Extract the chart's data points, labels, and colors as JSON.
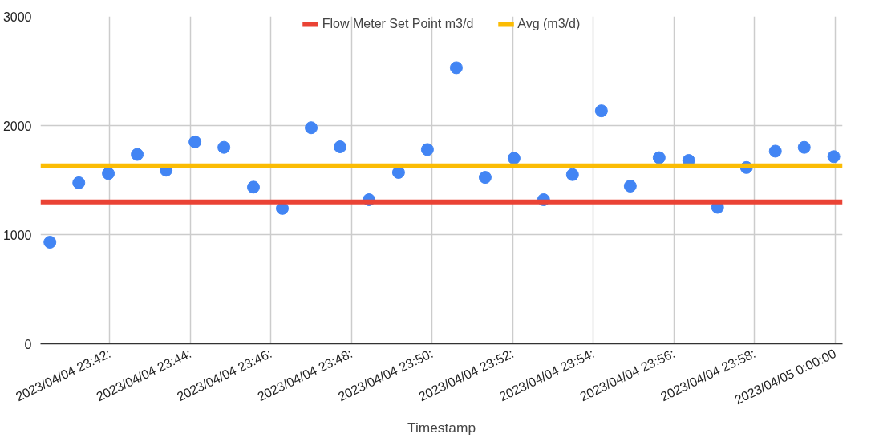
{
  "chart_data": {
    "type": "scatter",
    "xlabel": "Timestamp",
    "xlim": [
      "2023-04-04T23:40:17",
      "2023-04-05T00:00:11"
    ],
    "ylim": [
      0,
      3000
    ],
    "xticks": [
      {
        "value": "2023-04-04T23:42",
        "label": "2023/04/04 23:42:"
      },
      {
        "value": "2023-04-04T23:44",
        "label": "2023/04/04 23:44:"
      },
      {
        "value": "2023-04-04T23:46",
        "label": "2023/04/04 23:46:"
      },
      {
        "value": "2023-04-04T23:48",
        "label": "2023/04/04 23:48:"
      },
      {
        "value": "2023-04-04T23:50",
        "label": "2023/04/04 23:50:"
      },
      {
        "value": "2023-04-04T23:52",
        "label": "2023/04/04 23:52:"
      },
      {
        "value": "2023-04-04T23:54",
        "label": "2023/04/04 23:54:"
      },
      {
        "value": "2023-04-04T23:56",
        "label": "2023/04/04 23:56:"
      },
      {
        "value": "2023-04-04T23:58",
        "label": "2023/04/04 23:58:"
      },
      {
        "value": "2023-04-05T00:00",
        "label": "2023/04/05 0:00:00"
      }
    ],
    "yticks": [
      0,
      1000,
      2000,
      3000
    ],
    "grid": true,
    "legend": "top",
    "marker": "circle",
    "series": [
      {
        "color": "#4285f4",
        "x": [
          "2023-04-04T23:40:31",
          "2023-04-04T23:41:14",
          "2023-04-04T23:41:58",
          "2023-04-04T23:42:41",
          "2023-04-04T23:43:24",
          "2023-04-04T23:44:07",
          "2023-04-04T23:44:50",
          "2023-04-04T23:45:34",
          "2023-04-04T23:46:17",
          "2023-04-04T23:47:00",
          "2023-04-04T23:47:43",
          "2023-04-04T23:48:26",
          "2023-04-04T23:49:10",
          "2023-04-04T23:49:53",
          "2023-04-04T23:50:36",
          "2023-04-04T23:51:19",
          "2023-04-04T23:52:02",
          "2023-04-04T23:52:46",
          "2023-04-04T23:53:29",
          "2023-04-04T23:54:12",
          "2023-04-04T23:54:55",
          "2023-04-04T23:55:38",
          "2023-04-04T23:56:22",
          "2023-04-04T23:57:05",
          "2023-04-04T23:57:48",
          "2023-04-04T23:58:31",
          "2023-04-04T23:59:14",
          "2023-04-04T23:59:58"
        ],
        "values": [
          930,
          1475,
          1560,
          1735,
          1590,
          1850,
          1800,
          1435,
          1240,
          1980,
          1805,
          1320,
          1570,
          1780,
          2530,
          1525,
          1700,
          1320,
          1550,
          2135,
          1445,
          1705,
          1680,
          1250,
          1615,
          1765,
          1800,
          1715
        ]
      },
      {
        "type": "line",
        "marker": "none",
        "name": "Flow Meter Set Point m3/d",
        "color": "#ea4335",
        "x": [
          "2023-04-04T23:40:17",
          "2023-04-05T00:00:11"
        ],
        "values": [
          1300,
          1300
        ]
      },
      {
        "type": "line",
        "marker": "none",
        "name": "Avg (m3/d)",
        "color": "#fbbc04",
        "x": [
          "2023-04-04T23:40:17",
          "2023-04-05T00:00:11"
        ],
        "values": [
          1630,
          1630
        ]
      }
    ]
  }
}
